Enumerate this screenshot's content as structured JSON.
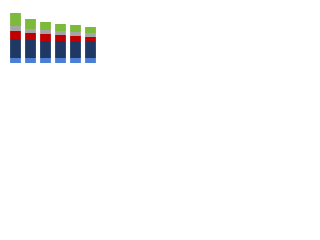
{
  "chart_data": {
    "type": "stacked-bar",
    "categories": [
      null,
      null,
      null,
      null,
      null,
      null
    ],
    "series": [
      {
        "color": "#4a7fd4",
        "values": [
          5,
          5,
          5,
          5,
          5,
          5
        ]
      },
      {
        "color": "#1f3864",
        "values": [
          19,
          18,
          17,
          17,
          16,
          16
        ]
      },
      {
        "color": "#c00000",
        "values": [
          8,
          7,
          7,
          6,
          6,
          5
        ]
      },
      {
        "color": "#a5a5a5",
        "values": [
          5,
          4,
          4,
          4,
          4,
          4
        ]
      },
      {
        "color": "#7cba3b",
        "values": [
          13,
          10,
          8,
          7,
          7,
          6
        ]
      }
    ],
    "ylim": [
      0,
      55
    ]
  }
}
